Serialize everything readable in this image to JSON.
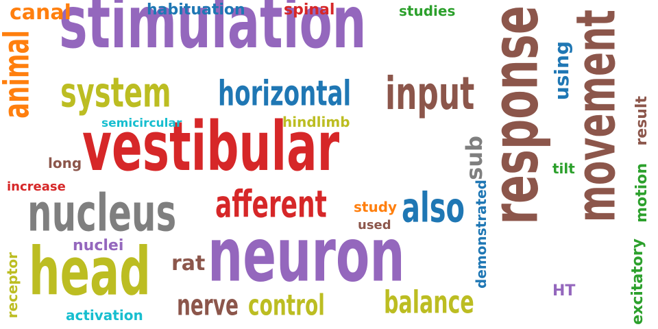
{
  "colors": {
    "background": "#ffffff",
    "purple": "#9467bd",
    "red": "#d62728",
    "olive": "#bcbd22",
    "brown": "#8c564b",
    "blue": "#1f77b4",
    "gray": "#7f7f7f",
    "orange": "#ff7f0e",
    "cyan": "#17becf",
    "green": "#2ca02c"
  },
  "words": {
    "stimulation": "stimulation",
    "vestibular": "vestibular",
    "neuron": "neuron",
    "response": "response",
    "movement": "movement",
    "nucleus": "nucleus",
    "head": "head",
    "animal": "animal",
    "system": "system",
    "horizontal": "horizontal",
    "input": "input",
    "afferent": "afferent",
    "also": "also",
    "canal": "canal",
    "habituation": "habituation",
    "spinal": "spinal",
    "studies": "studies",
    "using": "using",
    "semicircular": "semicircular",
    "hindlimb": "hindlimb",
    "sub": "sub",
    "long": "long",
    "increase": "increase",
    "tilt": "tilt",
    "result": "result",
    "motion": "motion",
    "excitatory": "excitatory",
    "study": "study",
    "used": "used",
    "demonstrated": "demonstrated",
    "nuclei": "nuclei",
    "rat": "rat",
    "receptor": "receptor",
    "nerve": "nerve",
    "control": "control",
    "balance": "balance",
    "activation": "activation",
    "ht": "HT"
  }
}
